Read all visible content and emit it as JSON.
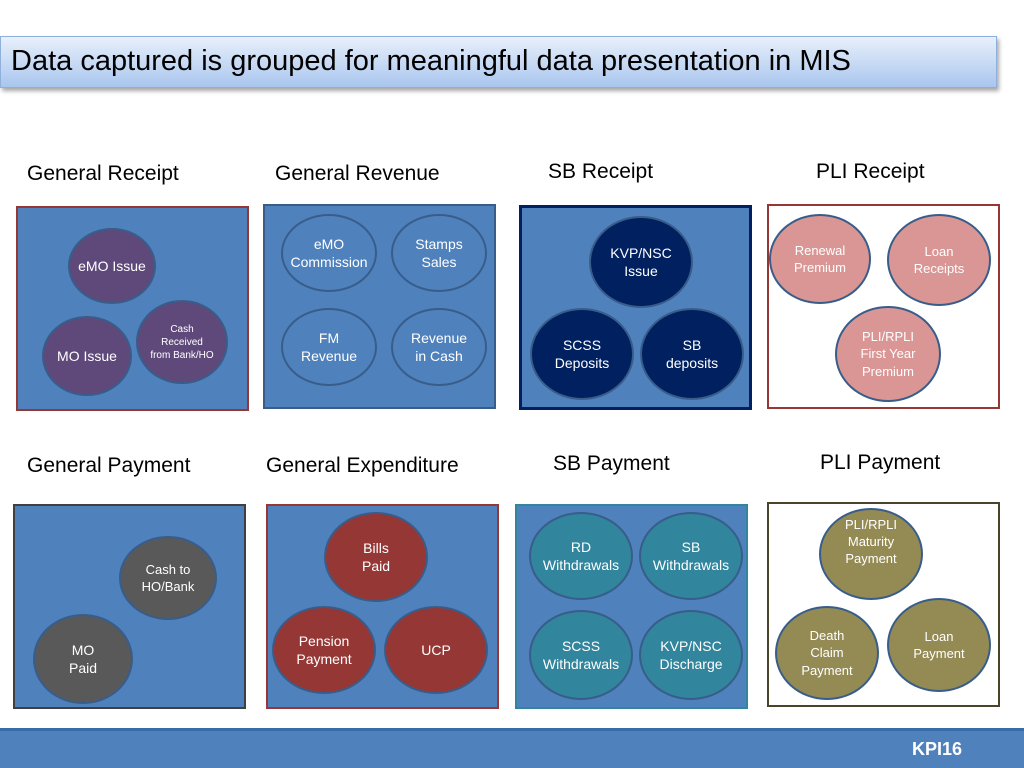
{
  "header": {
    "title": "Data captured is grouped for meaningful data presentation in MIS"
  },
  "groups": {
    "general_receipt": {
      "label": "General Receipt",
      "items": [
        "eMO Issue",
        "MO Issue",
        "Cash Received from Bank/HO"
      ]
    },
    "general_revenue": {
      "label": "General Revenue",
      "items": [
        "eMO Commission",
        "Stamps Sales",
        "FM Revenue",
        "Revenue in Cash"
      ]
    },
    "sb_receipt": {
      "label": "SB Receipt",
      "items": [
        "KVP/NSC Issue",
        "SCSS Deposits",
        "SB deposits"
      ]
    },
    "pli_receipt": {
      "label": "PLI Receipt",
      "items": [
        "Renewal Premium",
        "Loan Receipts",
        "PLI/RPLI First Year Premium"
      ]
    },
    "general_payment": {
      "label": "General Payment",
      "items": [
        "Cash to HO/Bank",
        "MO Paid"
      ]
    },
    "general_expenditure": {
      "label": "General Expenditure",
      "items": [
        "Bills Paid",
        "Pension Payment",
        "UCP"
      ]
    },
    "sb_payment": {
      "label": "SB Payment",
      "items": [
        "RD Withdrawals",
        "SB Withdrawals",
        "SCSS Withdrawals",
        "KVP/NSC Discharge"
      ]
    },
    "pli_payment": {
      "label": "PLI Payment",
      "items": [
        "PLI/RPLI Maturity Payment",
        "Death Claim Payment",
        "Loan Payment"
      ]
    }
  },
  "colors": {
    "box_fill": "#4f81bd",
    "general_receipt_circle": "#5f497a",
    "sb_receipt_circle": "#002060",
    "pli_receipt_circle": "#d99694",
    "general_payment_circle": "#595959",
    "general_expenditure_circle": "#953735",
    "sb_payment_circle": "#31859c",
    "pli_payment_circle": "#948a54"
  },
  "footer": {
    "code": "KPI16"
  }
}
